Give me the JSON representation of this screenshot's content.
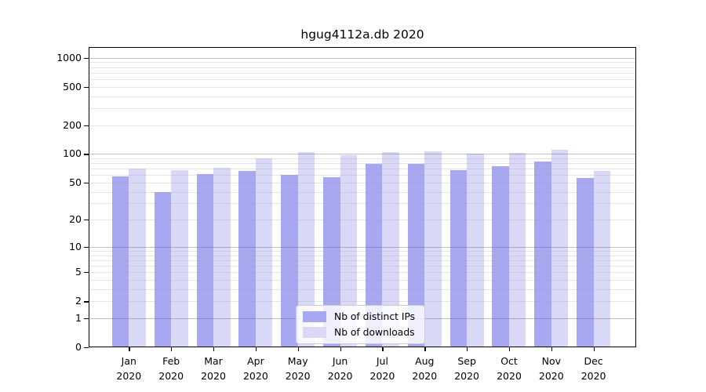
{
  "title": "hgug4112a.db 2020",
  "chart_data": {
    "type": "bar",
    "scale": "log10(value+1)",
    "title": "hgug4112a.db 2020",
    "categories": [
      "Jan",
      "Feb",
      "Mar",
      "Apr",
      "May",
      "Jun",
      "Jul",
      "Aug",
      "Sep",
      "Oct",
      "Nov",
      "Dec"
    ],
    "x_year": "2020",
    "series": [
      {
        "name": "Nb of distinct IPs",
        "color": "#a8a8f2",
        "values": [
          58,
          40,
          62,
          66,
          60,
          57,
          78,
          79,
          67,
          74,
          83,
          56
        ]
      },
      {
        "name": "Nb of downloads",
        "color": "#d9d9f7",
        "values": [
          70,
          67,
          72,
          90,
          105,
          96,
          104,
          106,
          100,
          102,
          110,
          66
        ]
      }
    ],
    "yticks": [
      0,
      1,
      2,
      5,
      10,
      20,
      50,
      100,
      200,
      500,
      1000
    ],
    "ylim": [
      0,
      1300
    ],
    "xlabel": "",
    "ylabel": "",
    "grid": {
      "minor": [
        2,
        3,
        4,
        5,
        6,
        7,
        8,
        9,
        20,
        30,
        40,
        50,
        60,
        70,
        80,
        90,
        200,
        300,
        400,
        500,
        600,
        700,
        800,
        900
      ],
      "major": [
        1,
        10,
        100,
        1000
      ]
    },
    "legend_position": "lower-center"
  }
}
